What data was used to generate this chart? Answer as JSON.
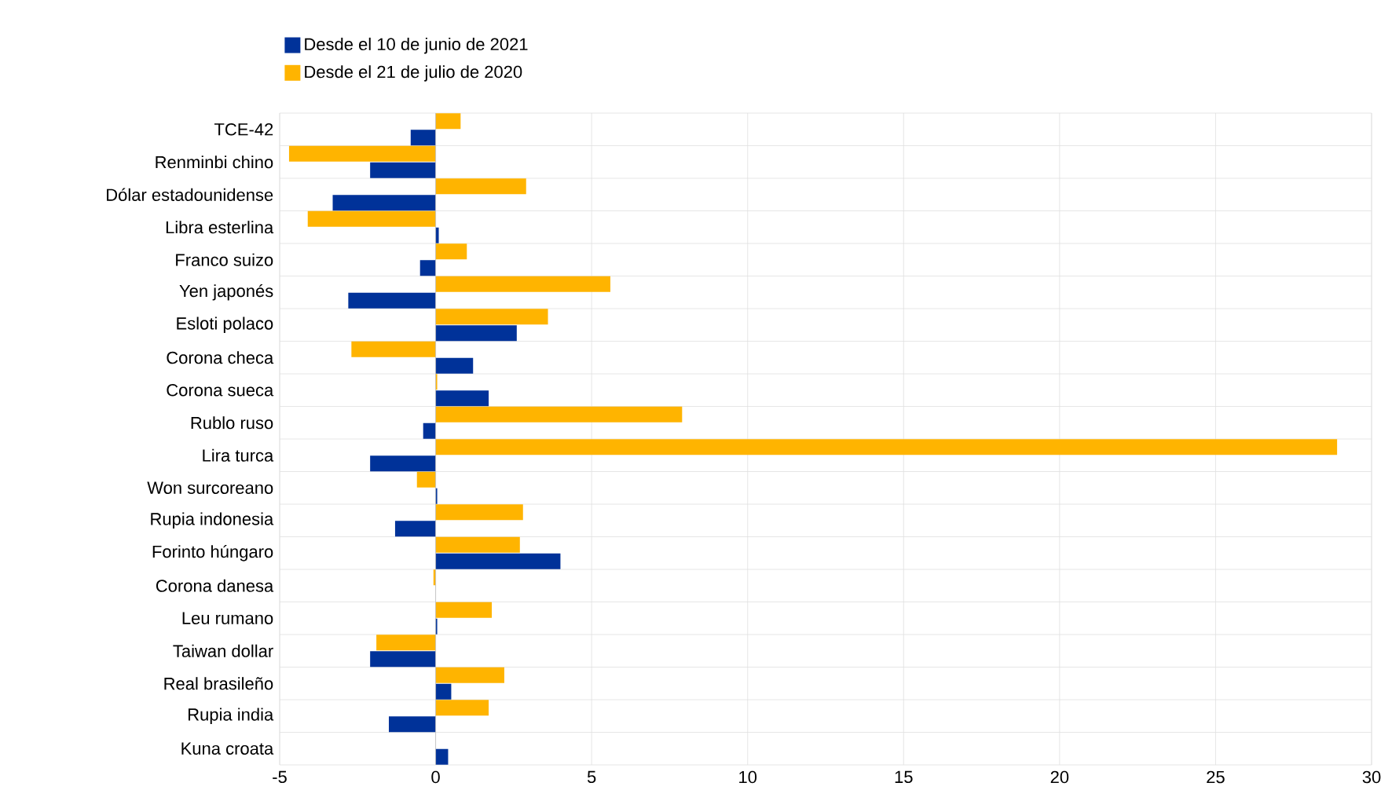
{
  "chart_data": {
    "type": "bar",
    "orientation": "horizontal",
    "legend": "top",
    "grid": true,
    "categories": [
      "TCE-42",
      "Renminbi chino",
      "Dólar estadounidense",
      "Libra esterlina",
      "Franco suizo",
      "Yen japonés",
      "Esloti polaco",
      "Corona checa",
      "Corona sueca",
      "Rublo ruso",
      "Lira turca",
      "Won surcoreano",
      "Rupia indonesia",
      "Forinto húngaro",
      "Corona danesa",
      "Leu rumano",
      "Taiwan dollar",
      "Real brasileño",
      "Rupia india",
      "Kuna croata"
    ],
    "xlim": [
      -5,
      30
    ],
    "xticks": [
      -5,
      0,
      5,
      10,
      15,
      20,
      25,
      30
    ],
    "series": [
      {
        "name": "Desde el 10 de junio de 2021",
        "color": "#003299",
        "values": [
          -0.8,
          -2.1,
          -3.3,
          0.1,
          -0.5,
          -2.8,
          2.6,
          1.2,
          1.7,
          -0.4,
          -2.1,
          0.05,
          -1.3,
          4.0,
          0.0,
          0.05,
          -2.1,
          0.5,
          -1.5,
          0.4
        ]
      },
      {
        "name": "Desde el 21 de julio de 2020",
        "color": "#ffb400",
        "values": [
          0.8,
          -4.7,
          2.9,
          -4.1,
          1.0,
          5.6,
          3.6,
          -2.7,
          0.05,
          7.9,
          28.9,
          -0.6,
          2.8,
          2.7,
          -0.07,
          1.8,
          -1.9,
          2.2,
          1.7,
          0.0
        ]
      }
    ]
  }
}
